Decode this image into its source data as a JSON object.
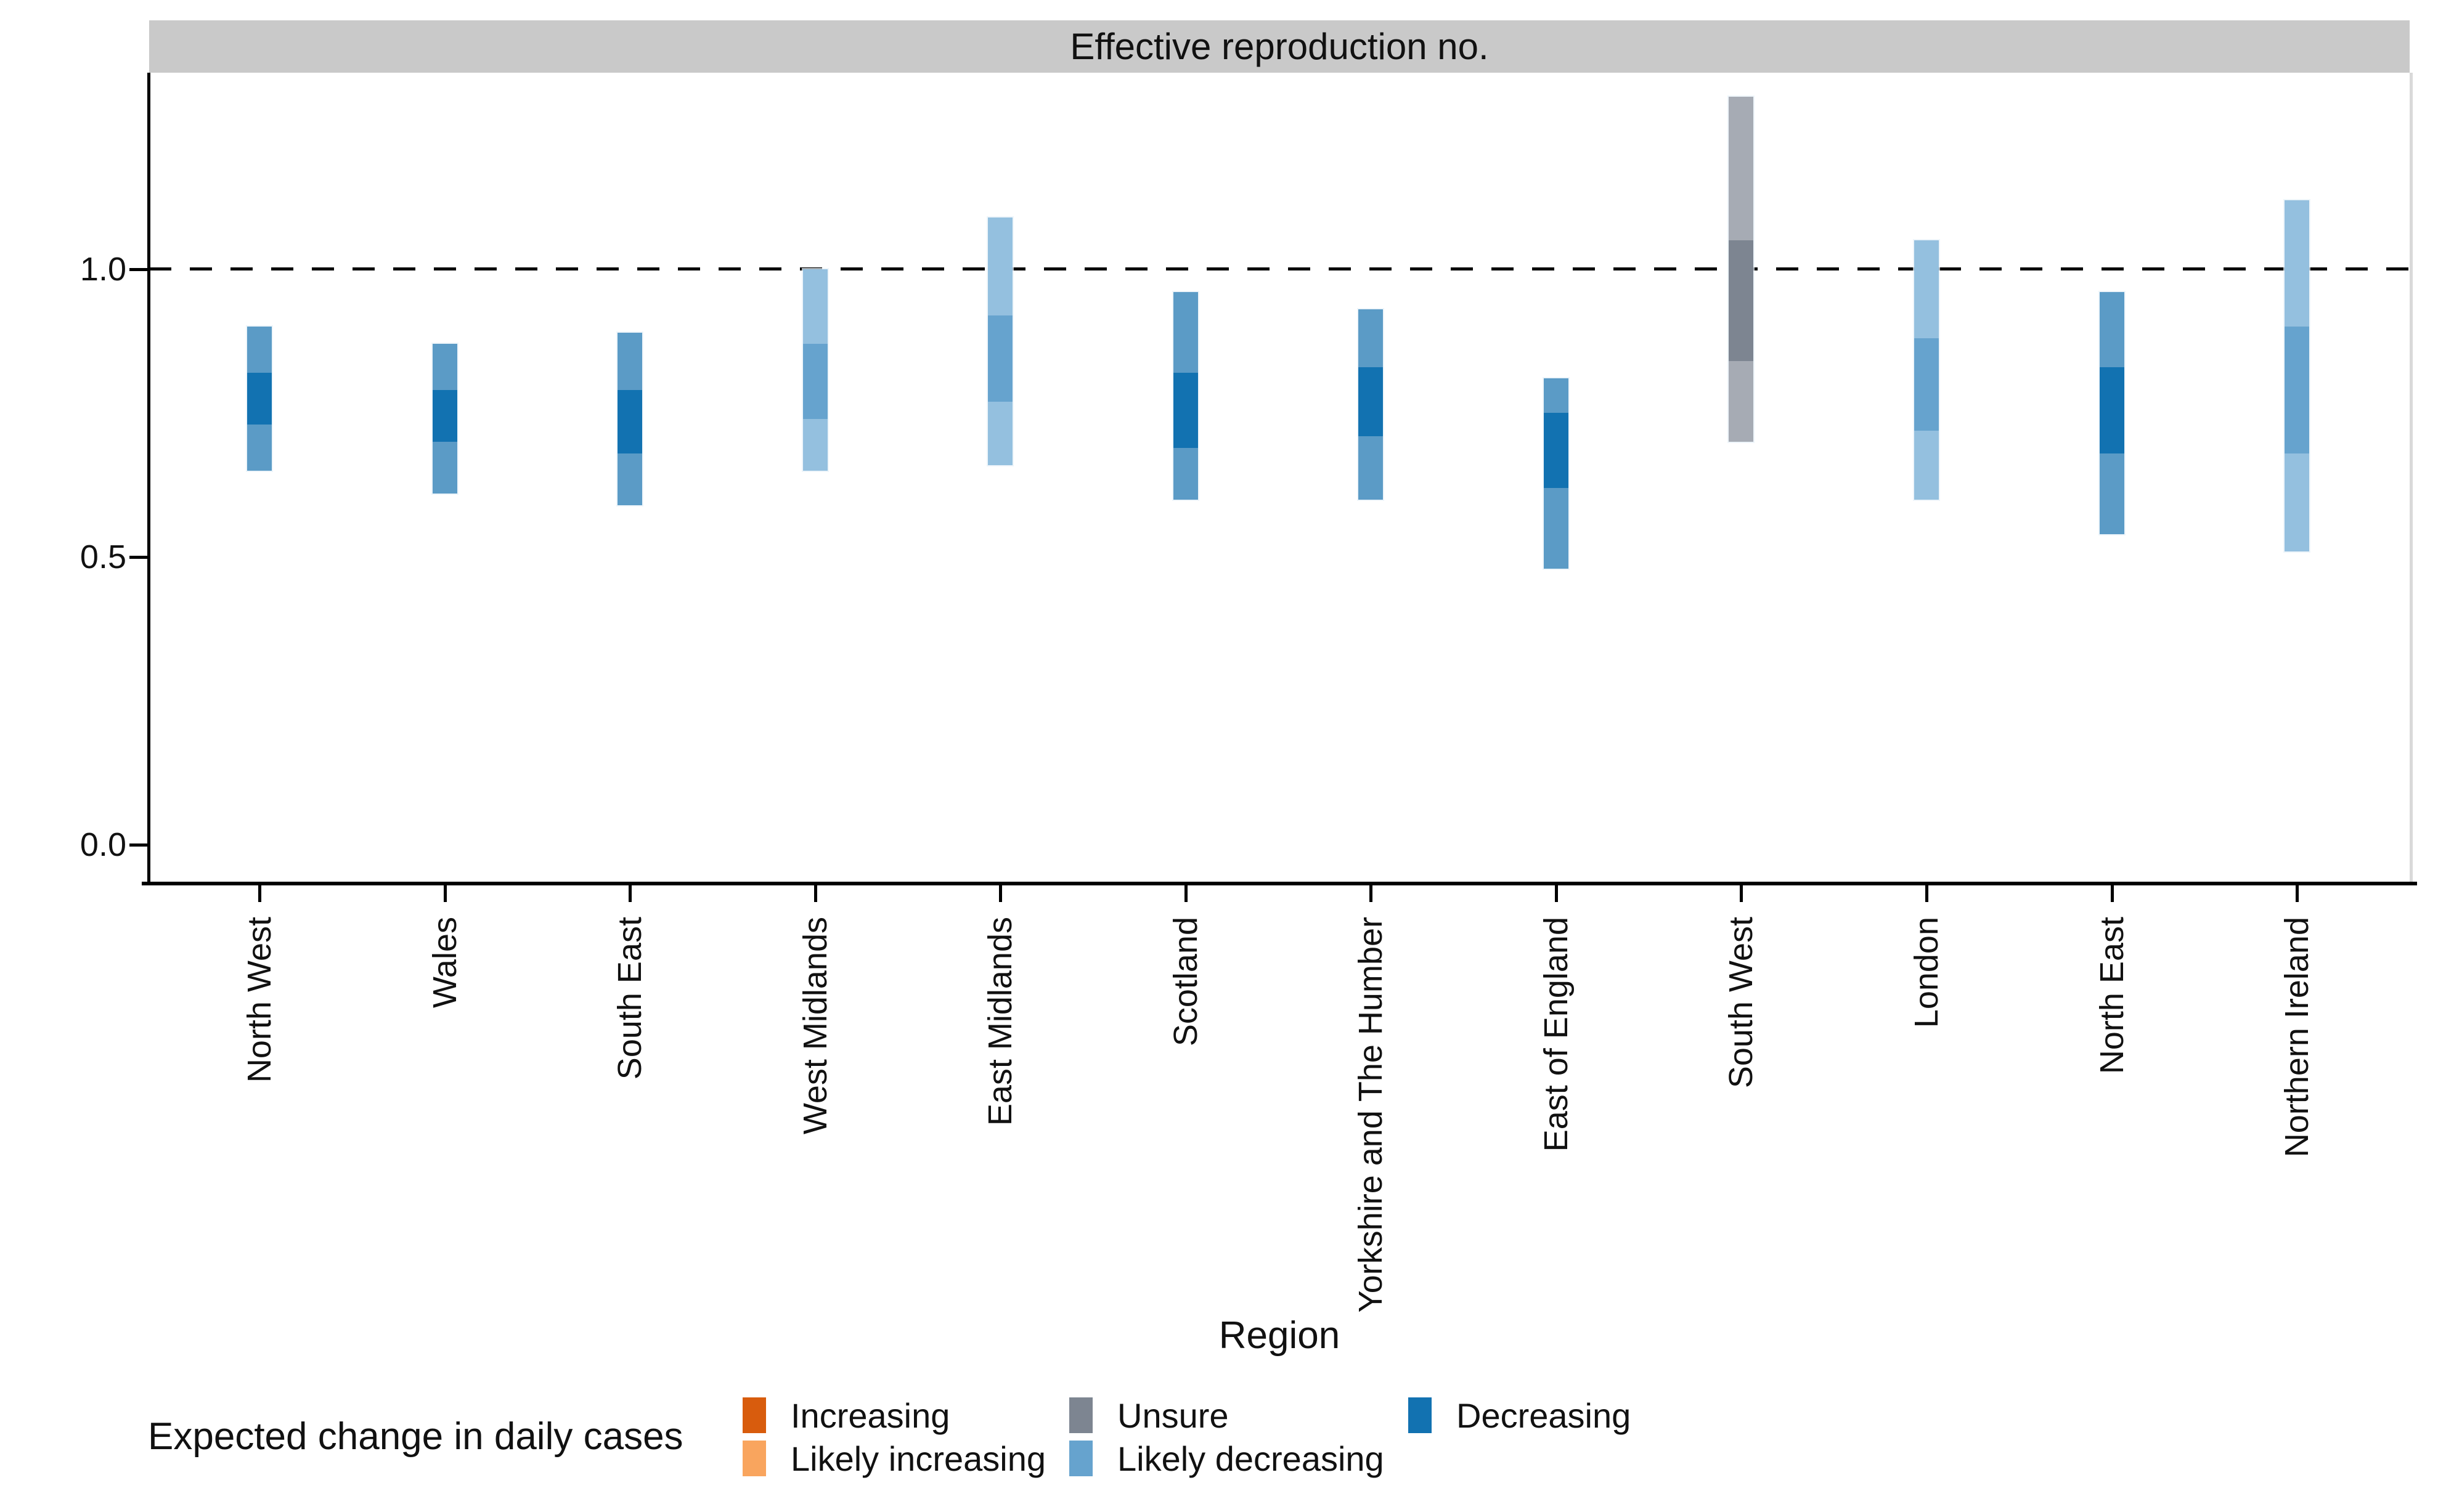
{
  "strip_title": "Effective reproduction no.",
  "x_axis_title": "Region",
  "legend": {
    "title": "Expected change in daily cases",
    "items": [
      {
        "label": "Increasing",
        "color": "#d85c0d",
        "col": 0,
        "row": 0
      },
      {
        "label": "Likely increasing",
        "color": "#f9a55e",
        "col": 0,
        "row": 1
      },
      {
        "label": "Unsure",
        "color": "#7d8591",
        "col": 1,
        "row": 0
      },
      {
        "label": "Likely decreasing",
        "color": "#66a3ce",
        "col": 1,
        "row": 1
      },
      {
        "label": "Decreasing",
        "color": "#1272b1",
        "col": 2,
        "row": 0
      }
    ]
  },
  "palette": {
    "decreasing": {
      "outer": "#5b9bc6",
      "inner": "#1272b1"
    },
    "likely_decreasing": {
      "outer": "#94c0df",
      "inner": "#66a3ce"
    },
    "unsure": {
      "outer": "#a6abb4",
      "inner": "#7d8591"
    },
    "increasing": {
      "outer": "#f0a06a",
      "inner": "#d85c0d"
    },
    "likely_increasing": {
      "outer": "#fbcfa3",
      "inner": "#f9a55e"
    }
  },
  "chart_data": {
    "type": "bar",
    "subtype": "credible-interval-bars",
    "title": "Effective reproduction no.",
    "xlabel": "Region",
    "ylabel": "",
    "ylim": [
      -0.08,
      1.41
    ],
    "yticks": [
      "1.0",
      "0.5",
      "0.0"
    ],
    "ytick_values": [
      1.0,
      0.5,
      0.0
    ],
    "reference_line": 1.0,
    "grid": false,
    "legend_position": "bottom",
    "categories": [
      "North West",
      "Wales",
      "South East",
      "West Midlands",
      "East Midlands",
      "Scotland",
      "Yorkshire and The Humber",
      "East of England",
      "South West",
      "London",
      "North East",
      "Northern Ireland"
    ],
    "series": [
      {
        "name": "North West",
        "category": "decreasing",
        "ci_outer": [
          0.65,
          0.9
        ],
        "ci_inner": [
          0.73,
          0.82
        ]
      },
      {
        "name": "Wales",
        "category": "decreasing",
        "ci_outer": [
          0.61,
          0.87
        ],
        "ci_inner": [
          0.7,
          0.79
        ]
      },
      {
        "name": "South East",
        "category": "decreasing",
        "ci_outer": [
          0.59,
          0.89
        ],
        "ci_inner": [
          0.68,
          0.79
        ]
      },
      {
        "name": "West Midlands",
        "category": "likely_decreasing",
        "ci_outer": [
          0.65,
          1.0
        ],
        "ci_inner": [
          0.74,
          0.87
        ]
      },
      {
        "name": "East Midlands",
        "category": "likely_decreasing",
        "ci_outer": [
          0.66,
          1.09
        ],
        "ci_inner": [
          0.77,
          0.92
        ]
      },
      {
        "name": "Scotland",
        "category": "decreasing",
        "ci_outer": [
          0.6,
          0.96
        ],
        "ci_inner": [
          0.69,
          0.82
        ]
      },
      {
        "name": "Yorkshire and The Humber",
        "category": "decreasing",
        "ci_outer": [
          0.6,
          0.93
        ],
        "ci_inner": [
          0.71,
          0.83
        ]
      },
      {
        "name": "East of England",
        "category": "decreasing",
        "ci_outer": [
          0.48,
          0.81
        ],
        "ci_inner": [
          0.62,
          0.75
        ]
      },
      {
        "name": "South West",
        "category": "unsure",
        "ci_outer": [
          0.7,
          1.3
        ],
        "ci_inner": [
          0.84,
          1.05
        ]
      },
      {
        "name": "London",
        "category": "likely_decreasing",
        "ci_outer": [
          0.6,
          1.05
        ],
        "ci_inner": [
          0.72,
          0.88
        ]
      },
      {
        "name": "North East",
        "category": "decreasing",
        "ci_outer": [
          0.54,
          0.96
        ],
        "ci_inner": [
          0.68,
          0.83
        ]
      },
      {
        "name": "Northern Ireland",
        "category": "likely_decreasing",
        "ci_outer": [
          0.51,
          1.12
        ],
        "ci_inner": [
          0.68,
          0.9
        ]
      }
    ]
  }
}
